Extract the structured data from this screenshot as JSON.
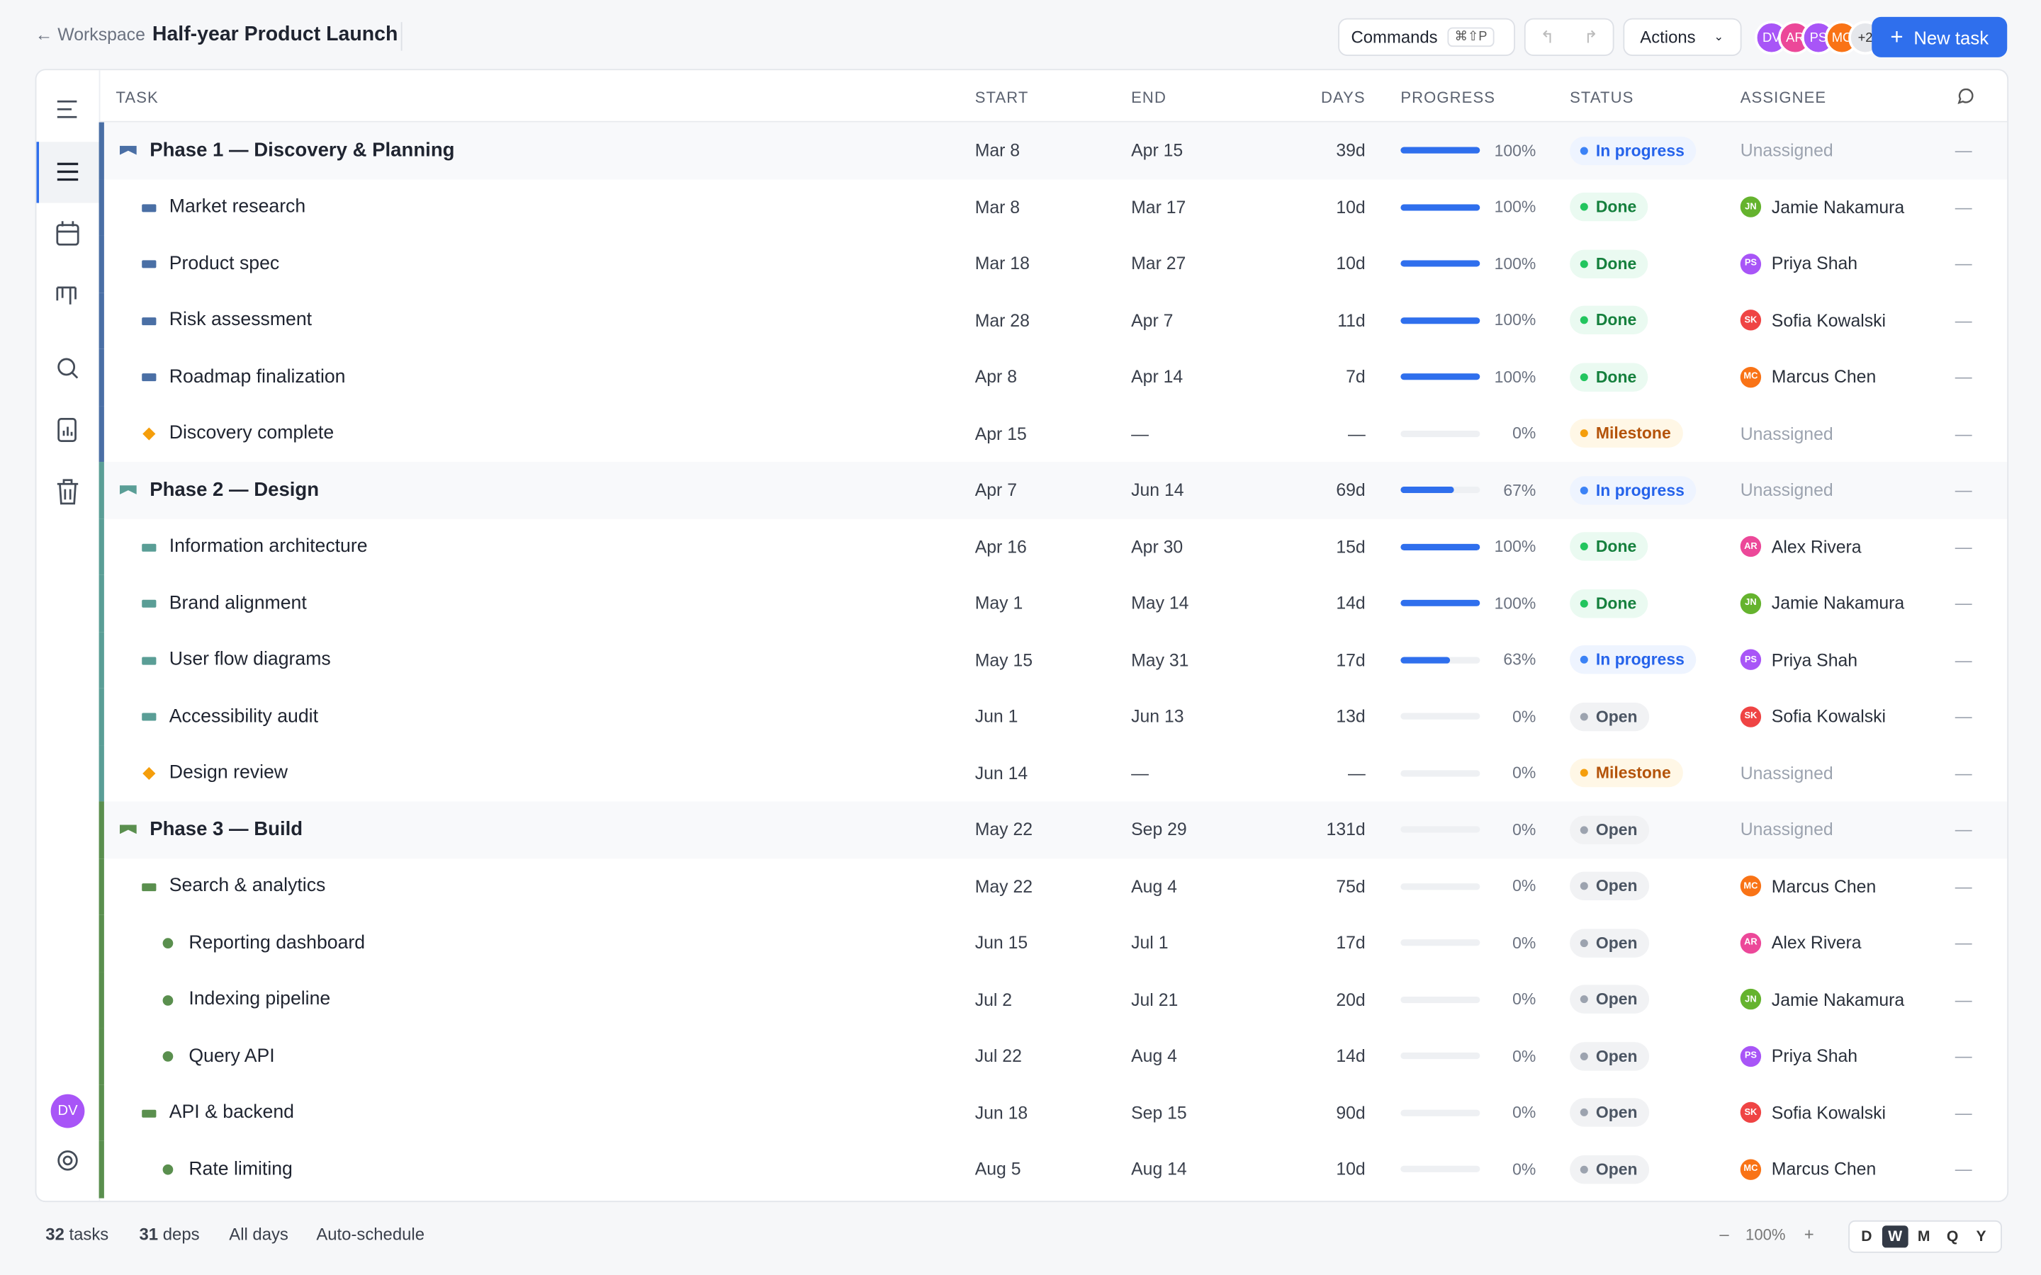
{
  "header": {
    "back": "Workspace",
    "title": "Half-year Product Launch",
    "commands": "Commands",
    "shortcut": "⌘⇧P",
    "actions": "Actions",
    "avatars": [
      {
        "initials": "DV",
        "color": "#a855f7"
      },
      {
        "initials": "AR",
        "color": "#ec4899"
      },
      {
        "initials": "PS",
        "color": "#a855f7"
      },
      {
        "initials": "MC",
        "color": "#f97316"
      }
    ],
    "more": "+2",
    "new_task": "New task"
  },
  "sidebar": {
    "user": "DV"
  },
  "columns": {
    "task": "TASK",
    "start": "START",
    "end": "END",
    "days": "DAYS",
    "progress": "PROGRESS",
    "status": "STATUS",
    "assignee": "ASSIGNEE"
  },
  "rows": [
    {
      "kind": "phase",
      "color": "#4a6fa5",
      "task": "Phase 1 — Discovery & Planning",
      "start": "Mar 8",
      "end": "Apr 15",
      "days": "39d",
      "progress": "100%",
      "status": {
        "label": "In progress",
        "tone": "blue"
      },
      "assignee": {
        "name": "Unassigned"
      },
      "comments": "—"
    },
    {
      "kind": "task",
      "color": "#4a6fa5",
      "task": "Market research",
      "start": "Mar 8",
      "end": "Mar 17",
      "days": "10d",
      "progress": "100%",
      "status": {
        "label": "Done",
        "tone": "green"
      },
      "assignee": {
        "initials": "JN",
        "name": "Jamie Nakamura",
        "color": "#65b32e"
      },
      "comments": "—"
    },
    {
      "kind": "task",
      "color": "#4a6fa5",
      "task": "Product spec",
      "start": "Mar 18",
      "end": "Mar 27",
      "days": "10d",
      "progress": "100%",
      "status": {
        "label": "Done",
        "tone": "green"
      },
      "assignee": {
        "initials": "PS",
        "name": "Priya Shah",
        "color": "#a855f7"
      },
      "comments": "—"
    },
    {
      "kind": "task",
      "color": "#4a6fa5",
      "task": "Risk assessment",
      "start": "Mar 28",
      "end": "Apr 7",
      "days": "11d",
      "progress": "100%",
      "status": {
        "label": "Done",
        "tone": "green"
      },
      "assignee": {
        "initials": "SK",
        "name": "Sofia Kowalski",
        "color": "#ef4444"
      },
      "comments": "—"
    },
    {
      "kind": "task",
      "color": "#4a6fa5",
      "task": "Roadmap finalization",
      "start": "Apr 8",
      "end": "Apr 14",
      "days": "7d",
      "progress": "100%",
      "status": {
        "label": "Done",
        "tone": "green"
      },
      "assignee": {
        "initials": "MC",
        "name": "Marcus Chen",
        "color": "#f97316"
      },
      "comments": "—"
    },
    {
      "kind": "milestone",
      "color": "#4a6fa5",
      "task": "Discovery complete",
      "start": "Apr 15",
      "end": "—",
      "days": "—",
      "progress": "0%",
      "status": {
        "label": "Milestone",
        "tone": "amber"
      },
      "assignee": {
        "name": "Unassigned"
      },
      "comments": "—"
    },
    {
      "kind": "phase",
      "color": "#5a9e96",
      "task": "Phase 2 — Design",
      "start": "Apr 7",
      "end": "Jun 14",
      "days": "69d",
      "progress": "67%",
      "status": {
        "label": "In progress",
        "tone": "blue"
      },
      "assignee": {
        "name": "Unassigned"
      },
      "comments": "—"
    },
    {
      "kind": "task",
      "color": "#5a9e96",
      "task": "Information architecture",
      "start": "Apr 16",
      "end": "Apr 30",
      "days": "15d",
      "progress": "100%",
      "status": {
        "label": "Done",
        "tone": "green"
      },
      "assignee": {
        "initials": "AR",
        "name": "Alex Rivera",
        "color": "#ec4899"
      },
      "comments": "—"
    },
    {
      "kind": "task",
      "color": "#5a9e96",
      "task": "Brand alignment",
      "start": "May 1",
      "end": "May 14",
      "days": "14d",
      "progress": "100%",
      "status": {
        "label": "Done",
        "tone": "green"
      },
      "assignee": {
        "initials": "JN",
        "name": "Jamie Nakamura",
        "color": "#65b32e"
      },
      "comments": "—"
    },
    {
      "kind": "task",
      "color": "#5a9e96",
      "task": "User flow diagrams",
      "start": "May 15",
      "end": "May 31",
      "days": "17d",
      "progress": "63%",
      "status": {
        "label": "In progress",
        "tone": "blue"
      },
      "assignee": {
        "initials": "PS",
        "name": "Priya Shah",
        "color": "#a855f7"
      },
      "comments": "—"
    },
    {
      "kind": "task",
      "color": "#5a9e96",
      "task": "Accessibility audit",
      "start": "Jun 1",
      "end": "Jun 13",
      "days": "13d",
      "progress": "0%",
      "status": {
        "label": "Open",
        "tone": "gray"
      },
      "assignee": {
        "initials": "SK",
        "name": "Sofia Kowalski",
        "color": "#ef4444"
      },
      "comments": "—"
    },
    {
      "kind": "milestone",
      "color": "#5a9e96",
      "task": "Design review",
      "start": "Jun 14",
      "end": "—",
      "days": "—",
      "progress": "0%",
      "status": {
        "label": "Milestone",
        "tone": "amber"
      },
      "assignee": {
        "name": "Unassigned"
      },
      "comments": "—"
    },
    {
      "kind": "phase",
      "color": "#5a8f4e",
      "task": "Phase 3 — Build",
      "start": "May 22",
      "end": "Sep 29",
      "days": "131d",
      "progress": "0%",
      "status": {
        "label": "Open",
        "tone": "gray"
      },
      "assignee": {
        "name": "Unassigned"
      },
      "comments": "—"
    },
    {
      "kind": "task",
      "color": "#5a8f4e",
      "task": "Search & analytics",
      "start": "May 22",
      "end": "Aug 4",
      "days": "75d",
      "progress": "0%",
      "status": {
        "label": "Open",
        "tone": "gray"
      },
      "assignee": {
        "initials": "MC",
        "name": "Marcus Chen",
        "color": "#f97316"
      },
      "comments": "—"
    },
    {
      "kind": "subtask",
      "color": "#5a8f4e",
      "task": "Reporting dashboard",
      "start": "Jun 15",
      "end": "Jul 1",
      "days": "17d",
      "progress": "0%",
      "status": {
        "label": "Open",
        "tone": "gray"
      },
      "assignee": {
        "initials": "AR",
        "name": "Alex Rivera",
        "color": "#ec4899"
      },
      "comments": "—"
    },
    {
      "kind": "subtask",
      "color": "#5a8f4e",
      "task": "Indexing pipeline",
      "start": "Jul 2",
      "end": "Jul 21",
      "days": "20d",
      "progress": "0%",
      "status": {
        "label": "Open",
        "tone": "gray"
      },
      "assignee": {
        "initials": "JN",
        "name": "Jamie Nakamura",
        "color": "#65b32e"
      },
      "comments": "—"
    },
    {
      "kind": "subtask",
      "color": "#5a8f4e",
      "task": "Query API",
      "start": "Jul 22",
      "end": "Aug 4",
      "days": "14d",
      "progress": "0%",
      "status": {
        "label": "Open",
        "tone": "gray"
      },
      "assignee": {
        "initials": "PS",
        "name": "Priya Shah",
        "color": "#a855f7"
      },
      "comments": "—"
    },
    {
      "kind": "task",
      "color": "#5a8f4e",
      "task": "API & backend",
      "start": "Jun 18",
      "end": "Sep 15",
      "days": "90d",
      "progress": "0%",
      "status": {
        "label": "Open",
        "tone": "gray"
      },
      "assignee": {
        "initials": "SK",
        "name": "Sofia Kowalski",
        "color": "#ef4444"
      },
      "comments": "—"
    },
    {
      "kind": "subtask",
      "color": "#5a8f4e",
      "task": "Rate limiting",
      "start": "Aug 5",
      "end": "Aug 14",
      "days": "10d",
      "progress": "0%",
      "status": {
        "label": "Open",
        "tone": "gray"
      },
      "assignee": {
        "initials": "MC",
        "name": "Marcus Chen",
        "color": "#f97316"
      },
      "comments": "—"
    }
  ],
  "footer": {
    "tasks_count": "32",
    "tasks": "tasks",
    "deps_count": "31",
    "deps": "deps",
    "range": "All days",
    "schedule": "Auto-schedule",
    "zoom_out": "–",
    "zoom": "100%",
    "zoom_in": "+",
    "scales": [
      "D",
      "W",
      "M",
      "Q",
      "Y"
    ],
    "active_scale": "W"
  }
}
